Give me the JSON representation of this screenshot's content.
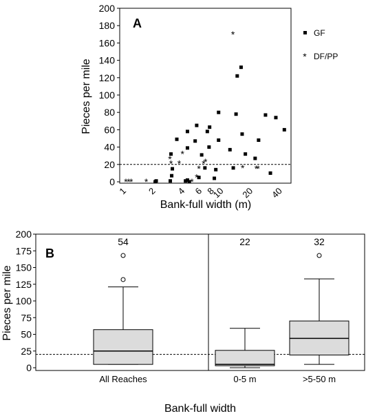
{
  "chart_data": [
    {
      "panel": "A",
      "type": "scatter",
      "ylabel": "Pieces per mile",
      "xlabel": "Bank-full width (m)",
      "x_scale": "log",
      "xticks": [
        "1",
        "2",
        "4",
        "6",
        "8",
        "10",
        "20",
        "40"
      ],
      "xtick_values": [
        1,
        2,
        4,
        6,
        8,
        10,
        20,
        40
      ],
      "yticks": [
        "0",
        "20",
        "40",
        "60",
        "80",
        "100",
        "120",
        "140",
        "160",
        "180",
        "200"
      ],
      "ylim": [
        0,
        200
      ],
      "reference_line_y": 20,
      "series": [
        {
          "name": "GF",
          "marker": "square",
          "points": [
            [
              2.1,
              0
            ],
            [
              2.15,
              1
            ],
            [
              3.0,
              1
            ],
            [
              3.1,
              7
            ],
            [
              3.15,
              15
            ],
            [
              3.05,
              32
            ],
            [
              3.5,
              49
            ],
            [
              4.3,
              1
            ],
            [
              4.5,
              2
            ],
            [
              4.7,
              0
            ],
            [
              4.5,
              39
            ],
            [
              4.5,
              58
            ],
            [
              5.4,
              47
            ],
            [
              5.6,
              65
            ],
            [
              6.3,
              31
            ],
            [
              6.8,
              16
            ],
            [
              5.9,
              5
            ],
            [
              7.2,
              58
            ],
            [
              7.6,
              63
            ],
            [
              7.5,
              40
            ],
            [
              8.5,
              4
            ],
            [
              8.8,
              14
            ],
            [
              9.4,
              48
            ],
            [
              9.4,
              80
            ],
            [
              12.3,
              37
            ],
            [
              13.3,
              16
            ],
            [
              14.2,
              78
            ],
            [
              14.6,
              122
            ],
            [
              16.0,
              132
            ],
            [
              16.4,
              55
            ],
            [
              17.7,
              32
            ],
            [
              22.3,
              27
            ],
            [
              24.2,
              48
            ],
            [
              28.5,
              77
            ],
            [
              32.0,
              10
            ],
            [
              36.4,
              74
            ],
            [
              44.5,
              60
            ]
          ]
        },
        {
          "name": "DF/PP",
          "marker": "asterisk",
          "points": [
            [
              1.05,
              0
            ],
            [
              1.12,
              0
            ],
            [
              1.19,
              0
            ],
            [
              1.7,
              0
            ],
            [
              2.97,
              26
            ],
            [
              3.05,
              21
            ],
            [
              3.7,
              21
            ],
            [
              4.0,
              32
            ],
            [
              5.0,
              0
            ],
            [
              5.6,
              5
            ],
            [
              5.9,
              15
            ],
            [
              6.6,
              21
            ],
            [
              6.9,
              23
            ],
            [
              13.2,
              170
            ],
            [
              16.6,
              16
            ],
            [
              22.9,
              15
            ],
            [
              23.9,
              15
            ]
          ]
        }
      ],
      "legend": [
        "GF",
        "DF/PP"
      ]
    },
    {
      "panel": "B",
      "type": "box",
      "ylabel": "Pieces per mile",
      "xlabel": "Bank-full width",
      "ylim": [
        0,
        200
      ],
      "yticks": [
        "0",
        "25",
        "50",
        "75",
        "100",
        "125",
        "150",
        "175",
        "200"
      ],
      "reference_line_y": 20,
      "groups": [
        {
          "label": "All Reaches",
          "n": "54",
          "min": 5,
          "q1": 5,
          "median": 25,
          "q3": 57,
          "max": 121,
          "outliers": [
            132,
            168
          ]
        },
        {
          "label": "0-5 m",
          "n": "22",
          "min": 0,
          "q1": 3,
          "median": 5,
          "q3": 26,
          "max": 59,
          "outliers": []
        },
        {
          "label": ">5-50 m",
          "n": "32",
          "min": 5,
          "q1": 19,
          "median": 44,
          "q3": 70,
          "max": 133,
          "outliers": [
            168
          ]
        }
      ]
    }
  ]
}
